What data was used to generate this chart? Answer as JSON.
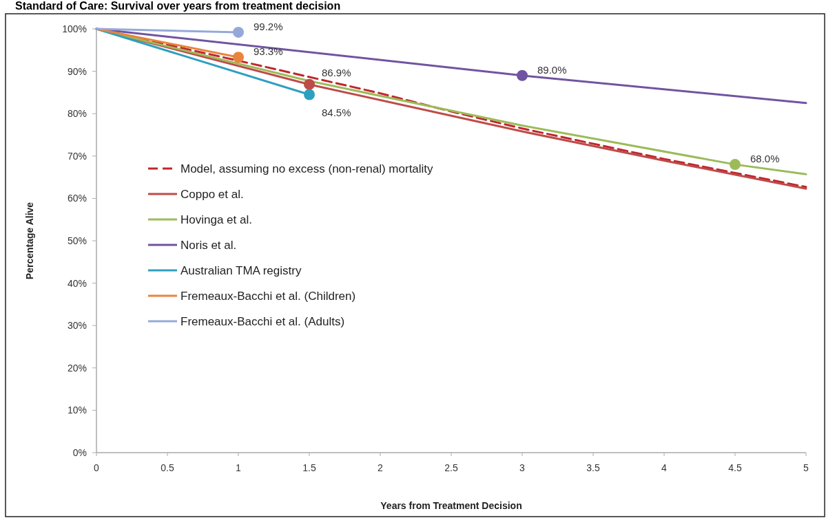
{
  "chart_data": {
    "type": "line",
    "title": "Standard of Care: Survival over years from treatment decision",
    "xlabel": "Years from Treatment Decision",
    "ylabel": "Percentage Alive",
    "xlim": [
      0,
      5
    ],
    "xticks": [
      0,
      0.5,
      1,
      1.5,
      2,
      2.5,
      3,
      3.5,
      4,
      4.5,
      5
    ],
    "ylim": [
      0,
      100
    ],
    "yticks": [
      {
        "value": 0,
        "label": "0%"
      },
      {
        "value": 10,
        "label": "10%"
      },
      {
        "value": 20,
        "label": "20%"
      },
      {
        "value": 30,
        "label": "30%"
      },
      {
        "value": 40,
        "label": "40%"
      },
      {
        "value": 50,
        "label": "50%"
      },
      {
        "value": 60,
        "label": "60%"
      },
      {
        "value": 70,
        "label": "70%"
      },
      {
        "value": 80,
        "label": "80%"
      },
      {
        "value": 90,
        "label": "90%"
      },
      {
        "value": 100,
        "label": "100%"
      }
    ],
    "grid": false,
    "legend": "left",
    "series": [
      {
        "name": "Model, assuming no excess (non-renal) mortality",
        "color": "#c0262d",
        "line_style": "dashed",
        "x": [
          0,
          1,
          2,
          2.5,
          3,
          4,
          5
        ],
        "values": [
          100,
          92.5,
          84.8,
          80.5,
          76.5,
          69.3,
          62.7
        ]
      },
      {
        "name": "Coppo et al.",
        "color": "#be4b48",
        "line_style": "solid",
        "x": [
          0,
          1.5,
          2.5,
          3,
          4,
          5
        ],
        "values": [
          100,
          86.9,
          79.5,
          75.8,
          68.9,
          62.3
        ]
      },
      {
        "name": "Hovinga et al.",
        "color": "#9bbb59",
        "line_style": "solid",
        "x": [
          0,
          1.5,
          3,
          4.5,
          5
        ],
        "values": [
          100,
          87.7,
          77.2,
          68.0,
          65.7
        ]
      },
      {
        "name": "Noris et al.",
        "color": "#7054a0",
        "line_style": "solid",
        "x": [
          0,
          3,
          5
        ],
        "values": [
          100,
          89.0,
          82.5
        ]
      },
      {
        "name": "Australian TMA registry",
        "color": "#2e9fbf",
        "line_style": "solid",
        "x": [
          0,
          1.5
        ],
        "values": [
          100,
          84.5
        ]
      },
      {
        "name": "Fremeaux-Bacchi et al. (Children)",
        "color": "#e8843c",
        "line_style": "solid",
        "x": [
          0,
          1
        ],
        "values": [
          100,
          93.3
        ]
      },
      {
        "name": "Fremeaux-Bacchi et al. (Adults)",
        "color": "#95a9d9",
        "line_style": "solid",
        "x": [
          0,
          1
        ],
        "values": [
          100,
          99.2
        ]
      },
      {
        "type": "scatter",
        "marker": "circle",
        "color": "#be4b48",
        "x": [
          1.5
        ],
        "values": [
          86.9
        ],
        "value_labels": [
          "86.9%"
        ]
      },
      {
        "type": "scatter",
        "marker": "circle",
        "color": "#9bbb59",
        "x": [
          4.5
        ],
        "values": [
          68.0
        ],
        "value_labels": [
          "68.0%"
        ]
      },
      {
        "type": "scatter",
        "marker": "circle",
        "color": "#7054a0",
        "x": [
          3
        ],
        "values": [
          89.0
        ],
        "value_labels": [
          "89.0%"
        ]
      },
      {
        "type": "scatter",
        "marker": "circle",
        "color": "#2e9fbf",
        "x": [
          1.5
        ],
        "values": [
          84.5
        ],
        "value_labels": [
          "84.5%"
        ]
      },
      {
        "type": "scatter",
        "marker": "circle",
        "color": "#e8843c",
        "x": [
          1
        ],
        "values": [
          93.3
        ],
        "value_labels": [
          "93.3%"
        ]
      },
      {
        "type": "scatter",
        "marker": "circle",
        "color": "#95a9d9",
        "x": [
          1
        ],
        "values": [
          99.2
        ],
        "value_labels": [
          "99.2%"
        ]
      }
    ]
  }
}
